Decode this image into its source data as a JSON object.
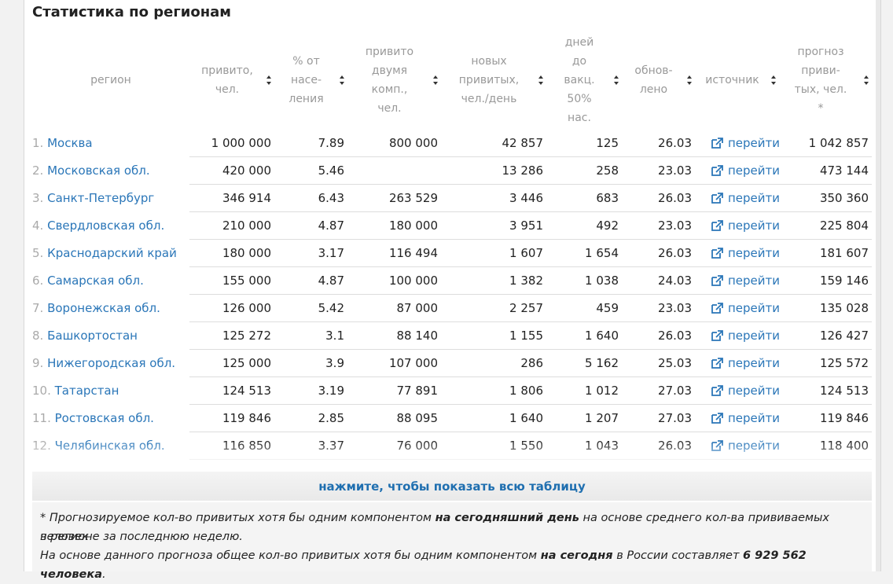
{
  "title": "Статистика по регионам",
  "columns": [
    {
      "label": "регион"
    },
    {
      "label": "привито,\nчел."
    },
    {
      "label": "% от\nнасе-\nления"
    },
    {
      "label": "привито\nдвумя\nкомп.,\nчел."
    },
    {
      "label": "новых\nпривитых,\nчел./день"
    },
    {
      "label": "дней\nдо\nвакц.\n50%\nнас."
    },
    {
      "label": "обнов-\nлено"
    },
    {
      "label": "источник"
    },
    {
      "label": "прогноз\nприви-\nтых, чел.\n*"
    }
  ],
  "rows": [
    {
      "n": "1.",
      "region": "Москва",
      "vacc": "1 000 000",
      "pct": "7.89",
      "two": "800 000",
      "new": "42 857",
      "days": "125",
      "upd": "26.03",
      "src": "перейти",
      "fc": "1 042 857"
    },
    {
      "n": "2.",
      "region": "Московская обл.",
      "vacc": "420 000",
      "pct": "5.46",
      "two": "",
      "new": "13 286",
      "days": "258",
      "upd": "23.03",
      "src": "перейти",
      "fc": "473 144"
    },
    {
      "n": "3.",
      "region": "Санкт-Петербург",
      "vacc": "346 914",
      "pct": "6.43",
      "two": "263 529",
      "new": "3 446",
      "days": "683",
      "upd": "26.03",
      "src": "перейти",
      "fc": "350 360"
    },
    {
      "n": "4.",
      "region": "Свердловская обл.",
      "vacc": "210 000",
      "pct": "4.87",
      "two": "180 000",
      "new": "3 951",
      "days": "492",
      "upd": "23.03",
      "src": "перейти",
      "fc": "225 804"
    },
    {
      "n": "5.",
      "region": "Краснодарский край",
      "vacc": "180 000",
      "pct": "3.17",
      "two": "116 494",
      "new": "1 607",
      "days": "1 654",
      "upd": "26.03",
      "src": "перейти",
      "fc": "181 607"
    },
    {
      "n": "6.",
      "region": "Самарская обл.",
      "vacc": "155 000",
      "pct": "4.87",
      "two": "100 000",
      "new": "1 382",
      "days": "1 038",
      "upd": "24.03",
      "src": "перейти",
      "fc": "159 146"
    },
    {
      "n": "7.",
      "region": "Воронежская обл.",
      "vacc": "126 000",
      "pct": "5.42",
      "two": "87 000",
      "new": "2 257",
      "days": "459",
      "upd": "23.03",
      "src": "перейти",
      "fc": "135 028"
    },
    {
      "n": "8.",
      "region": "Башкортостан",
      "vacc": "125 272",
      "pct": "3.1",
      "two": "88 140",
      "new": "1 155",
      "days": "1 640",
      "upd": "26.03",
      "src": "перейти",
      "fc": "126 427"
    },
    {
      "n": "9.",
      "region": "Нижегородская обл.",
      "vacc": "125 000",
      "pct": "3.9",
      "two": "107 000",
      "new": "286",
      "days": "5 162",
      "upd": "25.03",
      "src": "перейти",
      "fc": "125 572"
    },
    {
      "n": "10.",
      "region": "Татарстан",
      "vacc": "124 513",
      "pct": "3.19",
      "two": "77 891",
      "new": "1 806",
      "days": "1 012",
      "upd": "27.03",
      "src": "перейти",
      "fc": "124 513"
    },
    {
      "n": "11.",
      "region": "Ростовская обл.",
      "vacc": "119 846",
      "pct": "2.85",
      "two": "88 095",
      "new": "1 640",
      "days": "1 207",
      "upd": "27.03",
      "src": "перейти",
      "fc": "119 846"
    },
    {
      "n": "12.",
      "region": "Челябинская обл.",
      "vacc": "116 850",
      "pct": "3.37",
      "two": "76 000",
      "new": "1 550",
      "days": "1 043",
      "upd": "26.03",
      "src": "перейти",
      "fc": "118 400"
    }
  ],
  "show_all": "нажмите, чтобы показать всю таблицу",
  "footnote": {
    "l1_a": "* Прогнозируемое кол-во привитых хотя бы одним компонентом ",
    "l1_b": "на сегодняшний день",
    "l1_c": " на основе среднего кол-ва прививаемых человек",
    "l2": "в регионе за последнюю неделю.",
    "l3_a": "На основе данного прогноза общее кол-во привитых хотя бы одним компонентом ",
    "l3_b": "на сегодня",
    "l3_c": " в России составляет ",
    "l3_d": "6 929 562 человека",
    "l3_e": "."
  },
  "colors": {
    "link": "#2a76b8",
    "header_text": "#999999",
    "button_text": "#1f6fb0"
  },
  "icons": {
    "sort": "sort-arrows-icon",
    "external": "external-link-icon"
  }
}
